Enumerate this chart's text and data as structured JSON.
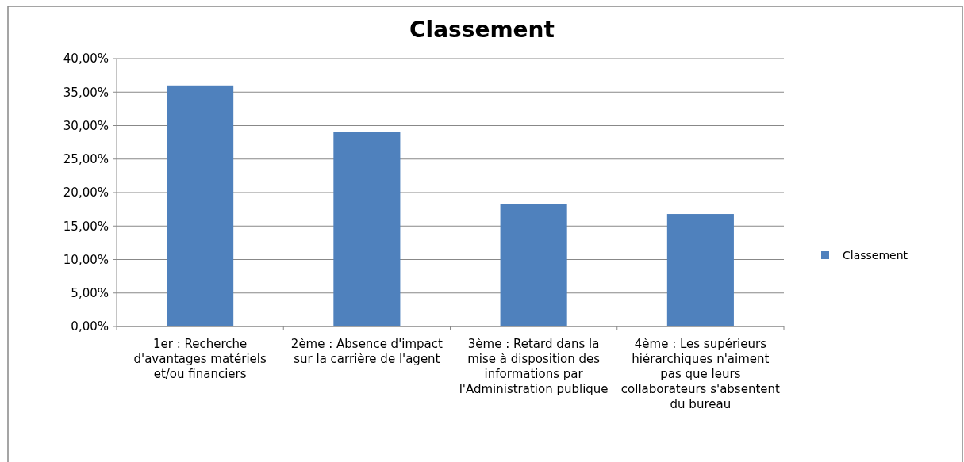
{
  "chart_data": {
    "type": "bar",
    "title": "Classement",
    "categories": [
      "1er : Recherche d'avantages matériels et/ou financiers",
      "2ème : Absence d'impact sur la carrière de l'agent",
      "3ème : Retard dans la mise à disposition des informations par l'Administration publique",
      "4ème : Les supérieurs hiérarchiques n'aiment pas que leurs collaborateurs s'absentent du bureau"
    ],
    "series": [
      {
        "name": "Classement",
        "color": "#4f81bd",
        "values": [
          36,
          29,
          18.3,
          16.8
        ]
      }
    ],
    "ylim": [
      0,
      40
    ],
    "yticks": [
      {
        "value": 0,
        "label": "0,00%"
      },
      {
        "value": 5,
        "label": "5,00%"
      },
      {
        "value": 10,
        "label": "10,00%"
      },
      {
        "value": 15,
        "label": "15,00%"
      },
      {
        "value": 20,
        "label": "20,00%"
      },
      {
        "value": 25,
        "label": "25,00%"
      },
      {
        "value": 30,
        "label": "30,00%"
      },
      {
        "value": 35,
        "label": "35,00%"
      },
      {
        "value": 40,
        "label": "40,00%"
      }
    ],
    "grid": "y",
    "legend": "right"
  }
}
